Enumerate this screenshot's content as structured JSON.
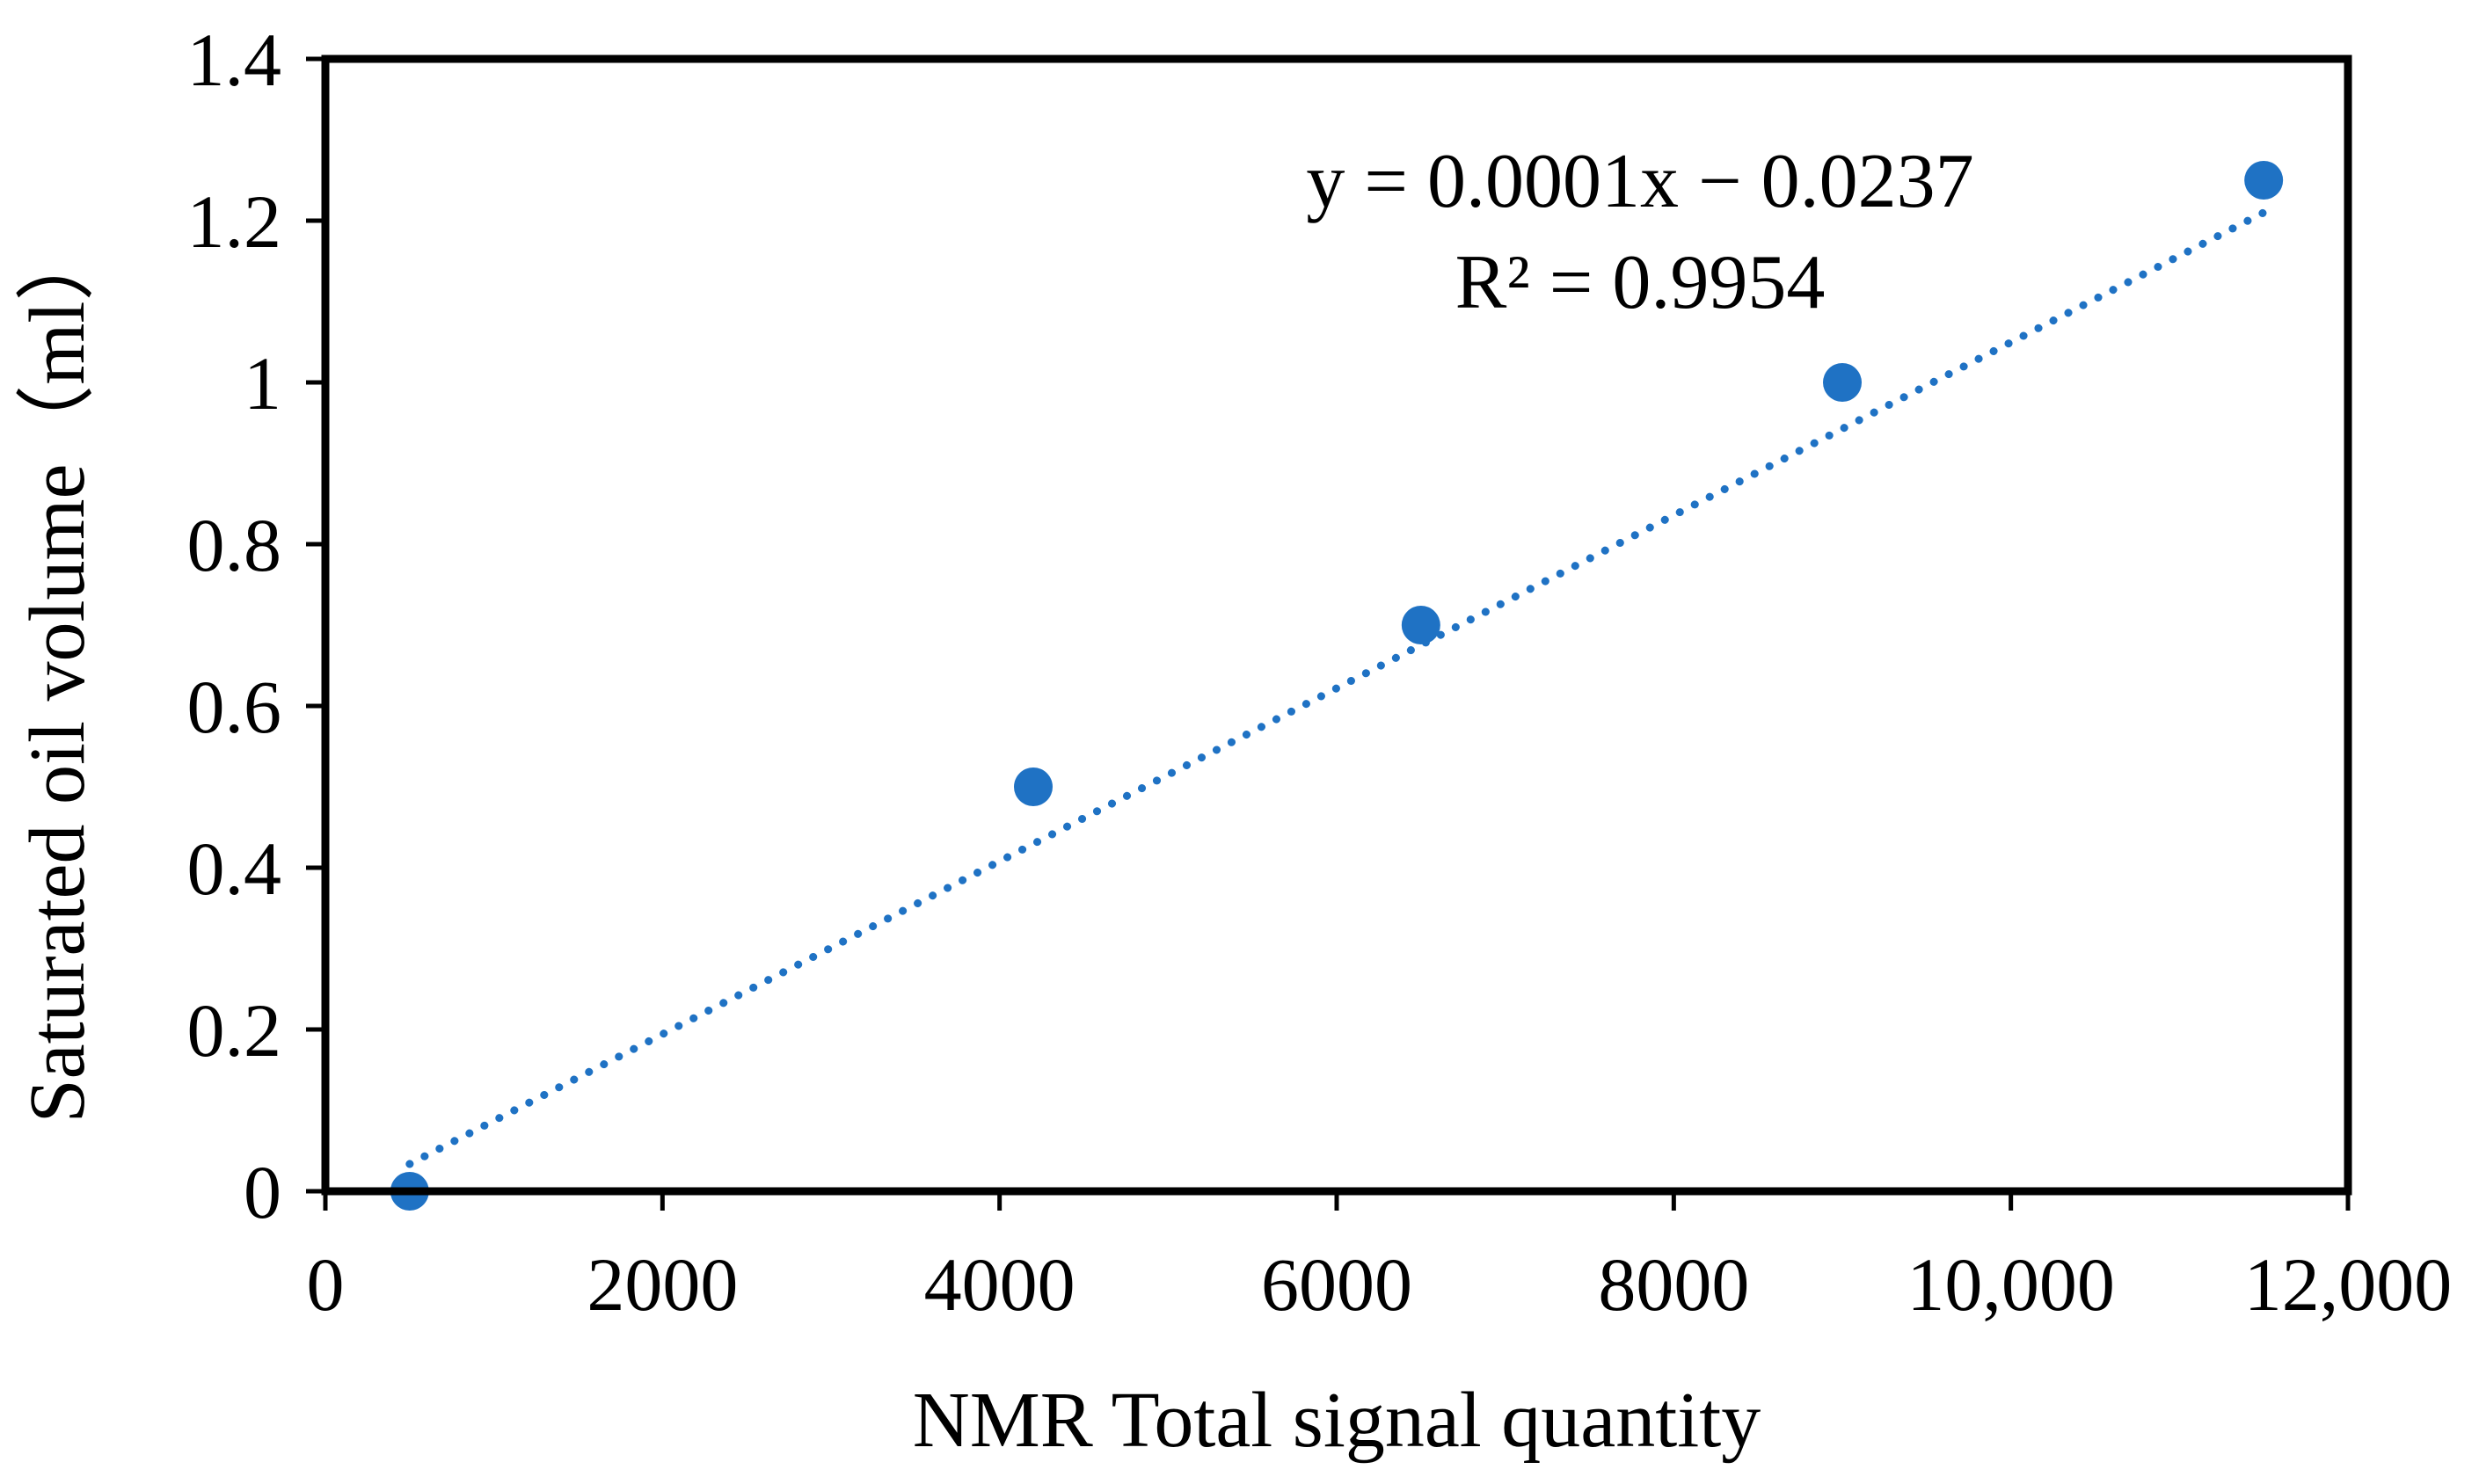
{
  "chart_data": {
    "type": "scatter",
    "title": "",
    "xlabel": "NMR Total signal quantity",
    "ylabel": "Saturated oil volume（ml）",
    "xlim": [
      0,
      12000
    ],
    "ylim": [
      0,
      1.4
    ],
    "x_ticks": [
      0,
      2000,
      4000,
      6000,
      8000,
      10000,
      12000
    ],
    "x_tick_labels": [
      "0",
      "2000",
      "4000",
      "6000",
      "8000",
      "10,000",
      "12,000"
    ],
    "y_ticks": [
      0,
      0.2,
      0.4,
      0.6,
      0.8,
      1.0,
      1.2,
      1.4
    ],
    "y_tick_labels": [
      "0",
      "0.2",
      "0.4",
      "0.6",
      "0.8",
      "1",
      "1.2",
      "1.4"
    ],
    "grid": false,
    "series": [
      {
        "name": "Saturated oil volume",
        "x": [
          500,
          4200,
          6500,
          9000,
          11500
        ],
        "y": [
          0,
          0.5,
          0.7,
          1.0,
          1.25
        ]
      }
    ],
    "trendline": {
      "type": "linear",
      "style": "dotted",
      "x_range": [
        500,
        11500
      ],
      "slope": 0.0001,
      "intercept": -0.0237
    },
    "annotations": {
      "equation": "y = 0.0001x − 0.0237",
      "r_squared": "R² = 0.9954"
    },
    "colors": {
      "series": "#1f72c4",
      "axis": "#000000"
    }
  }
}
